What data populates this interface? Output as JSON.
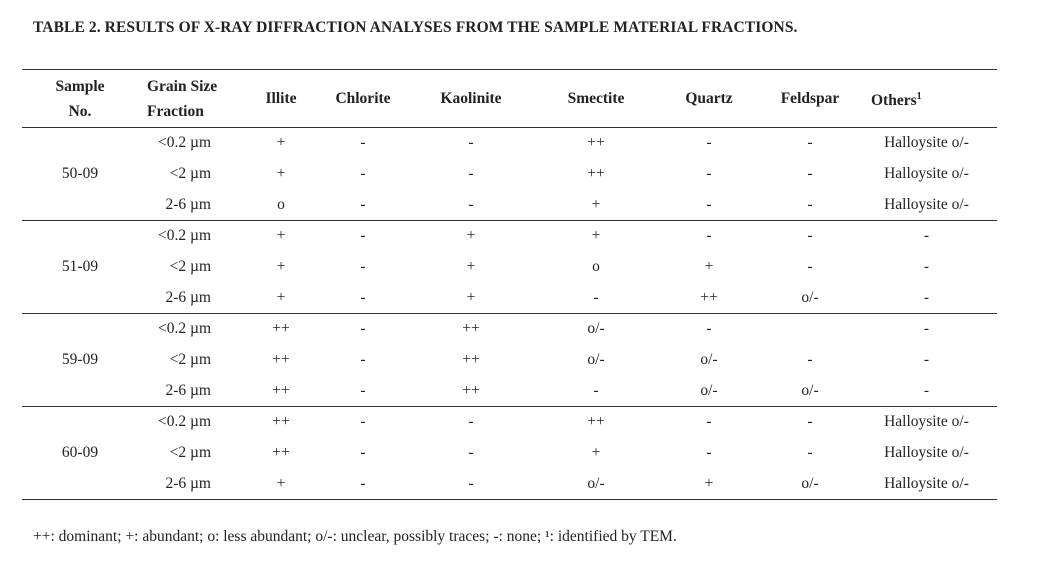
{
  "title": "TABLE 2. RESULTS OF X-RAY DIFFRACTION ANALYSES FROM THE SAMPLE MATERIAL FRACTIONS.",
  "headers": {
    "sample": "Sample No.",
    "grain": "Grain Size Fraction",
    "illite": "Illite",
    "chlorite": "Chlorite",
    "kaolinite": "Kaolinite",
    "smectite": "Smectite",
    "quartz": "Quartz",
    "feldspar": "Feldspar",
    "others": "Others",
    "others_sup": "1"
  },
  "groups": [
    {
      "sample": "50-09",
      "rows": [
        [
          "<0.2 µm",
          "+",
          "-",
          "-",
          "++",
          "-",
          "-",
          "Halloysite o/-"
        ],
        [
          "<2 µm",
          "+",
          "-",
          "-",
          "++",
          "-",
          "-",
          "Halloysite o/-"
        ],
        [
          "2-6 µm",
          "o",
          "-",
          "-",
          "+",
          "-",
          "-",
          "Halloysite o/-"
        ]
      ]
    },
    {
      "sample": "51-09",
      "rows": [
        [
          "<0.2 µm",
          "+",
          "-",
          "+",
          "+",
          "-",
          "-",
          "-"
        ],
        [
          "<2 µm",
          "+",
          "-",
          "+",
          "o",
          "+",
          "-",
          "-"
        ],
        [
          "2-6 µm",
          "+",
          "-",
          "+",
          "-",
          "++",
          "o/-",
          "-"
        ]
      ]
    },
    {
      "sample": "59-09",
      "rows": [
        [
          "<0.2 µm",
          "++",
          "-",
          "++",
          "o/-",
          "-",
          "",
          "-"
        ],
        [
          "<2 µm",
          "++",
          "-",
          "++",
          "o/-",
          "o/-",
          "-",
          "-"
        ],
        [
          "2-6 µm",
          "++",
          "-",
          "++",
          "-",
          "o/-",
          "o/-",
          "-"
        ]
      ]
    },
    {
      "sample": "60-09",
      "rows": [
        [
          "<0.2 µm",
          "++",
          "-",
          "-",
          "++",
          "-",
          "-",
          "Halloysite o/-"
        ],
        [
          "<2 µm",
          "++",
          "-",
          "-",
          "+",
          "-",
          "-",
          "Halloysite o/-"
        ],
        [
          "2-6 µm",
          "+",
          "-",
          "-",
          "o/-",
          "+",
          "o/-",
          "Halloysite o/-"
        ]
      ]
    }
  ],
  "footnote": "++: dominant; +: abundant; o: less abundant; o/-: unclear, possibly traces; -: none; ¹: identified by TEM."
}
